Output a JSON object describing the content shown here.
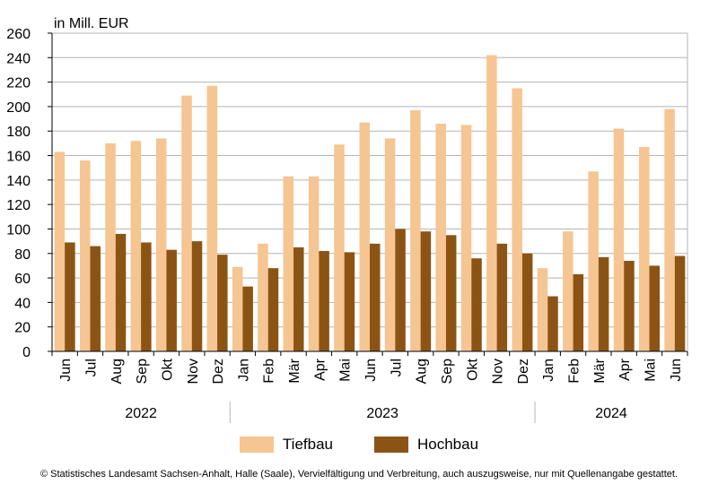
{
  "chart_data": {
    "type": "bar",
    "unit_label": "in Mill. EUR",
    "categories": [
      "Jun",
      "Jul",
      "Aug",
      "Sep",
      "Okt",
      "Nov",
      "Dez",
      "Jan",
      "Feb",
      "Mär",
      "Apr",
      "Mai",
      "Jun",
      "Jul",
      "Aug",
      "Sep",
      "Okt",
      "Nov",
      "Dez",
      "Jan",
      "Feb",
      "Mär",
      "Apr",
      "Mai",
      "Jun"
    ],
    "year_groups": [
      {
        "label": "2022",
        "start": 0,
        "end": 6
      },
      {
        "label": "2023",
        "start": 7,
        "end": 18
      },
      {
        "label": "2024",
        "start": 19,
        "end": 24
      }
    ],
    "series": [
      {
        "name": "Tiefbau",
        "color": "#f5c592",
        "values": [
          163,
          156,
          170,
          172,
          174,
          209,
          217,
          69,
          88,
          143,
          143,
          169,
          187,
          174,
          197,
          186,
          185,
          242,
          215,
          68,
          98,
          147,
          182,
          167,
          198
        ]
      },
      {
        "name": "Hochbau",
        "color": "#8c5414",
        "values": [
          89,
          86,
          96,
          89,
          83,
          90,
          79,
          53,
          68,
          85,
          82,
          81,
          88,
          100,
          98,
          95,
          76,
          88,
          80,
          45,
          63,
          77,
          74,
          70,
          78
        ]
      }
    ],
    "ylim": [
      0,
      260
    ],
    "yticks": [
      0,
      20,
      40,
      60,
      80,
      100,
      120,
      140,
      160,
      180,
      200,
      220,
      240,
      260
    ],
    "grid": true,
    "legend_position": "bottom"
  },
  "footer": "© Statistisches Landesamt Sachsen-Anhalt, Halle (Saale), Vervielfältigung und Verbreitung, auch auszugsweise, nur mit Quellenangabe gestattet."
}
